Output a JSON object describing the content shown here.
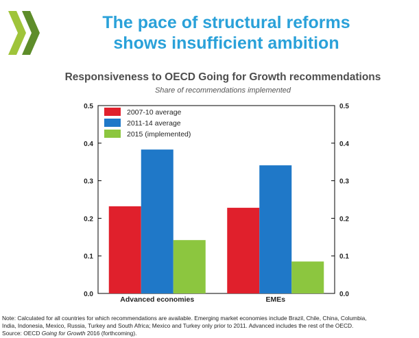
{
  "slide": {
    "title_line1": "The pace of structural reforms",
    "title_line2": "shows insufficient ambition",
    "logo_icon": "oecd-chevrons-icon",
    "title_color": "#2aa1d9"
  },
  "chart_data": {
    "type": "bar",
    "title": "Responsiveness to OECD Going for Growth recommendations",
    "subtitle": "Share of recommendations implemented",
    "categories": [
      "Advanced economies",
      "EMEs"
    ],
    "series": [
      {
        "name": "2007-10 average",
        "color": "#e0202c",
        "values": [
          0.232,
          0.228
        ]
      },
      {
        "name": "2011-14 average",
        "color": "#1f78c8",
        "values": [
          0.383,
          0.341
        ]
      },
      {
        "name": "2015 (implemented)",
        "color": "#8cc63f",
        "values": [
          0.142,
          0.085
        ]
      }
    ],
    "ylim": [
      0,
      0.5
    ],
    "yticks": [
      "0.0",
      "0.1",
      "0.2",
      "0.3",
      "0.4",
      "0.5"
    ],
    "y_axis_both_sides": true,
    "grid": false,
    "legend_position": "top-left"
  },
  "note": {
    "line1": "Note: Calculated for all countries for which recommendations are available. Emerging market economies include Brazil, Chile, China, Columbia,",
    "line2": "India, Indonesia, Mexico, Russia, Turkey and South Africa; Mexico and Turkey only prior to 2011. Advanced includes the rest of the OECD.",
    "source_prefix": "Source: OECD ",
    "source_italic": "Going for Growth",
    "source_suffix": " 2016 (forthcoming)."
  }
}
